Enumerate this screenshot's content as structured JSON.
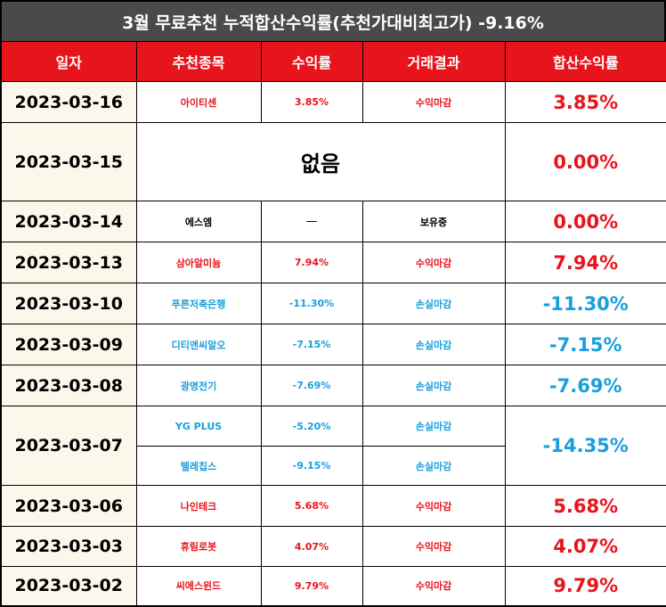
{
  "title": "3월 무료추천 누적합산수익률(추천가대비최고가) -9.16%",
  "headers": {
    "date": "일자",
    "stock": "추천종목",
    "return": "수익률",
    "result": "거래결과",
    "total": "합산수익률"
  },
  "colors": {
    "header_bg": "#e8141c",
    "title_bg": "#4a4a4a",
    "date_bg": "#fbf7ea",
    "positive": "#e8141c",
    "negative": "#1a9fdc"
  },
  "rows": [
    {
      "date": "2023-03-16",
      "stock": "아이티센",
      "return": "3.85%",
      "result": "수익마감",
      "total": "3.85%"
    },
    {
      "date": "2023-03-15",
      "none": "없음",
      "total": "0.00%"
    },
    {
      "date": "2023-03-14",
      "stock": "에스엠",
      "return": "—",
      "result": "보유중",
      "total": "0.00%"
    },
    {
      "date": "2023-03-13",
      "stock": "삼아알미늄",
      "return": "7.94%",
      "result": "수익마감",
      "total": "7.94%"
    },
    {
      "date": "2023-03-10",
      "stock": "푸른저축은행",
      "return": "-11.30%",
      "result": "손실마감",
      "total": "-11.30%"
    },
    {
      "date": "2023-03-09",
      "stock": "디티앤씨알오",
      "return": "-7.15%",
      "result": "손실마감",
      "total": "-7.15%"
    },
    {
      "date": "2023-03-08",
      "stock": "광명전기",
      "return": "-7.69%",
      "result": "손실마감",
      "total": "-7.69%"
    },
    {
      "date": "2023-03-07",
      "stock": "YG PLUS",
      "return": "-5.20%",
      "result": "손실마감",
      "total": "-14.35%"
    },
    {
      "stock": "텔레칩스",
      "return": "-9.15%",
      "result": "손실마감"
    },
    {
      "date": "2023-03-06",
      "stock": "나인테크",
      "return": "5.68%",
      "result": "수익마감",
      "total": "5.68%"
    },
    {
      "date": "2023-03-03",
      "stock": "휴림로봇",
      "return": "4.07%",
      "result": "수익마감",
      "total": "4.07%"
    },
    {
      "date": "2023-03-02",
      "stock": "씨에스윈드",
      "return": "9.79%",
      "result": "수익마감",
      "total": "9.79%"
    }
  ]
}
